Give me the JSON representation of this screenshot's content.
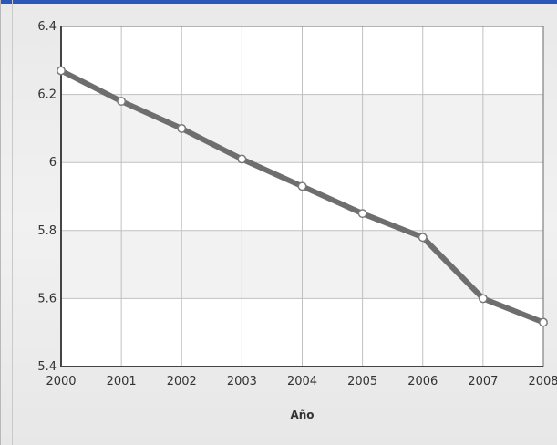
{
  "chart_data": {
    "type": "line",
    "title": "",
    "xlabel": "Año",
    "ylabel": "",
    "categories": [
      "2000",
      "2001",
      "2002",
      "2003",
      "2004",
      "2005",
      "2006",
      "2007",
      "2008"
    ],
    "series": [
      {
        "values": [
          6.27,
          6.18,
          6.1,
          6.01,
          5.93,
          5.85,
          5.78,
          5.6,
          5.53
        ]
      }
    ],
    "ylim": [
      5.4,
      6.4
    ],
    "yticks": [
      "6.4",
      "6.2",
      "6",
      "5.8",
      "5.6",
      "5.4"
    ],
    "grid": true,
    "legend": "none",
    "colors": {
      "line": "#6e6e6e",
      "marker_fill": "#ffffff",
      "marker_stroke": "#7a7a7a",
      "grid": "#c0c0c0",
      "band_light": "#ffffff",
      "band_dark": "#f2f2f2",
      "axis": "#444444",
      "top_rule": "#2a57b8"
    }
  }
}
